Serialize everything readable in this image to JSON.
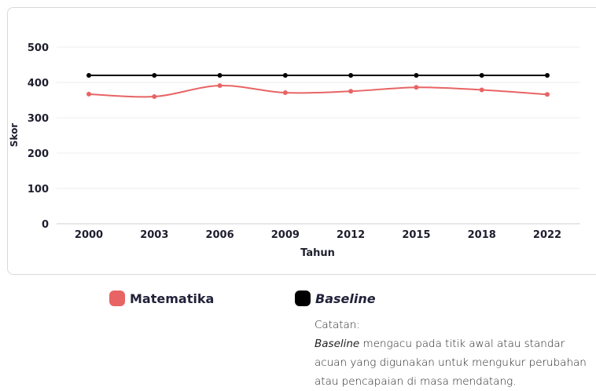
{
  "chart_data": {
    "type": "line",
    "categories": [
      "2000",
      "2003",
      "2006",
      "2009",
      "2012",
      "2015",
      "2018",
      "2022"
    ],
    "series": [
      {
        "name": "Matematika",
        "values": [
          367,
          360,
          391,
          371,
          375,
          386,
          379,
          366
        ],
        "color": "#e86464"
      },
      {
        "name": "Baseline",
        "values": [
          420,
          420,
          420,
          420,
          420,
          420,
          420,
          420
        ],
        "color": "#000000"
      }
    ],
    "xlabel": "Tahun",
    "ylabel": "Skor",
    "ylim": [
      0,
      500
    ],
    "yticks": [
      "0",
      "100",
      "200",
      "300",
      "400",
      "500"
    ],
    "grid": true,
    "legend_position": "bottom"
  },
  "legend": {
    "matematika": "Matematika",
    "baseline": "Baseline"
  },
  "note": {
    "heading": "Catatan:",
    "term": "Baseline",
    "text": " mengacu pada titik awal atau standar acuan yang digunakan untuk mengukur perubahan atau pencapaian di masa mendatang."
  }
}
